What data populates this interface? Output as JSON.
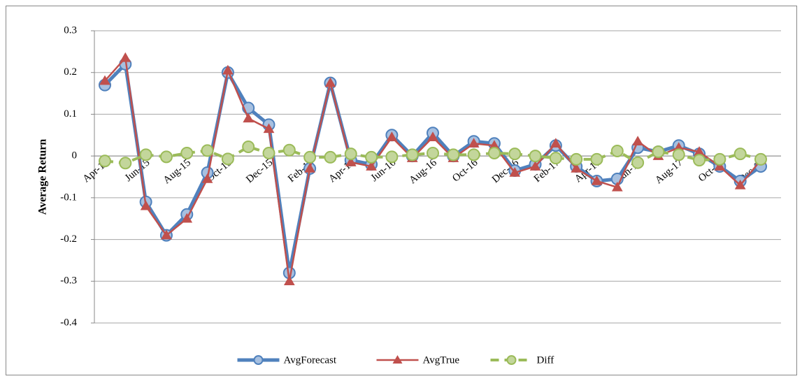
{
  "chart_data": {
    "type": "line",
    "y_label": "Average Return",
    "categories": [
      "Apr-15",
      null,
      "Jun-15",
      null,
      "Aug-15",
      null,
      "Oct-15",
      null,
      "Dec-15",
      null,
      "Feb-16",
      null,
      "Apr-16",
      null,
      "Jun-16",
      null,
      "Aug-16",
      null,
      "Oct-16",
      null,
      "Dec-16",
      null,
      "Feb-17",
      null,
      "Apr-17",
      null,
      "Jun-17",
      null,
      "Aug-17",
      null,
      "Oct-17",
      null,
      "Dec-17"
    ],
    "series": [
      {
        "name": "AvgForecast",
        "color": "#4f81bd",
        "marker": "circle",
        "dashed": false,
        "values": [
          0.17,
          0.22,
          -0.11,
          -0.19,
          -0.14,
          -0.04,
          0.2,
          0.115,
          0.075,
          -0.28,
          -0.03,
          0.175,
          -0.01,
          -0.02,
          0.05,
          0.0,
          0.055,
          0.0,
          0.035,
          0.03,
          -0.035,
          -0.02,
          0.025,
          -0.025,
          -0.06,
          -0.055,
          0.02,
          0.01,
          0.025,
          0.005,
          -0.025,
          -0.06,
          -0.025
        ]
      },
      {
        "name": "AvgTrue",
        "color": "#c0504d",
        "marker": "triangle",
        "dashed": false,
        "values": [
          0.18,
          0.235,
          -0.12,
          -0.19,
          -0.15,
          -0.055,
          0.205,
          0.09,
          0.065,
          -0.3,
          -0.03,
          0.175,
          -0.015,
          -0.025,
          0.045,
          -0.005,
          0.045,
          -0.005,
          0.03,
          0.025,
          -0.04,
          -0.025,
          0.03,
          -0.03,
          -0.06,
          -0.075,
          0.035,
          0.0,
          0.02,
          0.01,
          -0.025,
          -0.07,
          -0.01
        ]
      },
      {
        "name": "Diff",
        "color": "#9bbb59",
        "marker": "circle",
        "dashed": true,
        "values": [
          -0.012,
          -0.017,
          0.003,
          -0.002,
          0.007,
          0.013,
          -0.007,
          0.022,
          0.007,
          0.014,
          -0.003,
          -0.003,
          0.005,
          -0.003,
          -0.002,
          0.003,
          0.007,
          0.003,
          0.003,
          0.007,
          0.005,
          0.0,
          -0.005,
          -0.008,
          -0.008,
          0.012,
          -0.016,
          0.01,
          0.003,
          -0.01,
          -0.008,
          0.005,
          -0.008
        ]
      }
    ],
    "ylim": [
      -0.4,
      0.3
    ],
    "yticks": [
      -0.4,
      -0.3,
      -0.2,
      -0.1,
      0,
      0.1,
      0.2,
      0.3
    ],
    "grid": true,
    "legend": "bottom"
  }
}
